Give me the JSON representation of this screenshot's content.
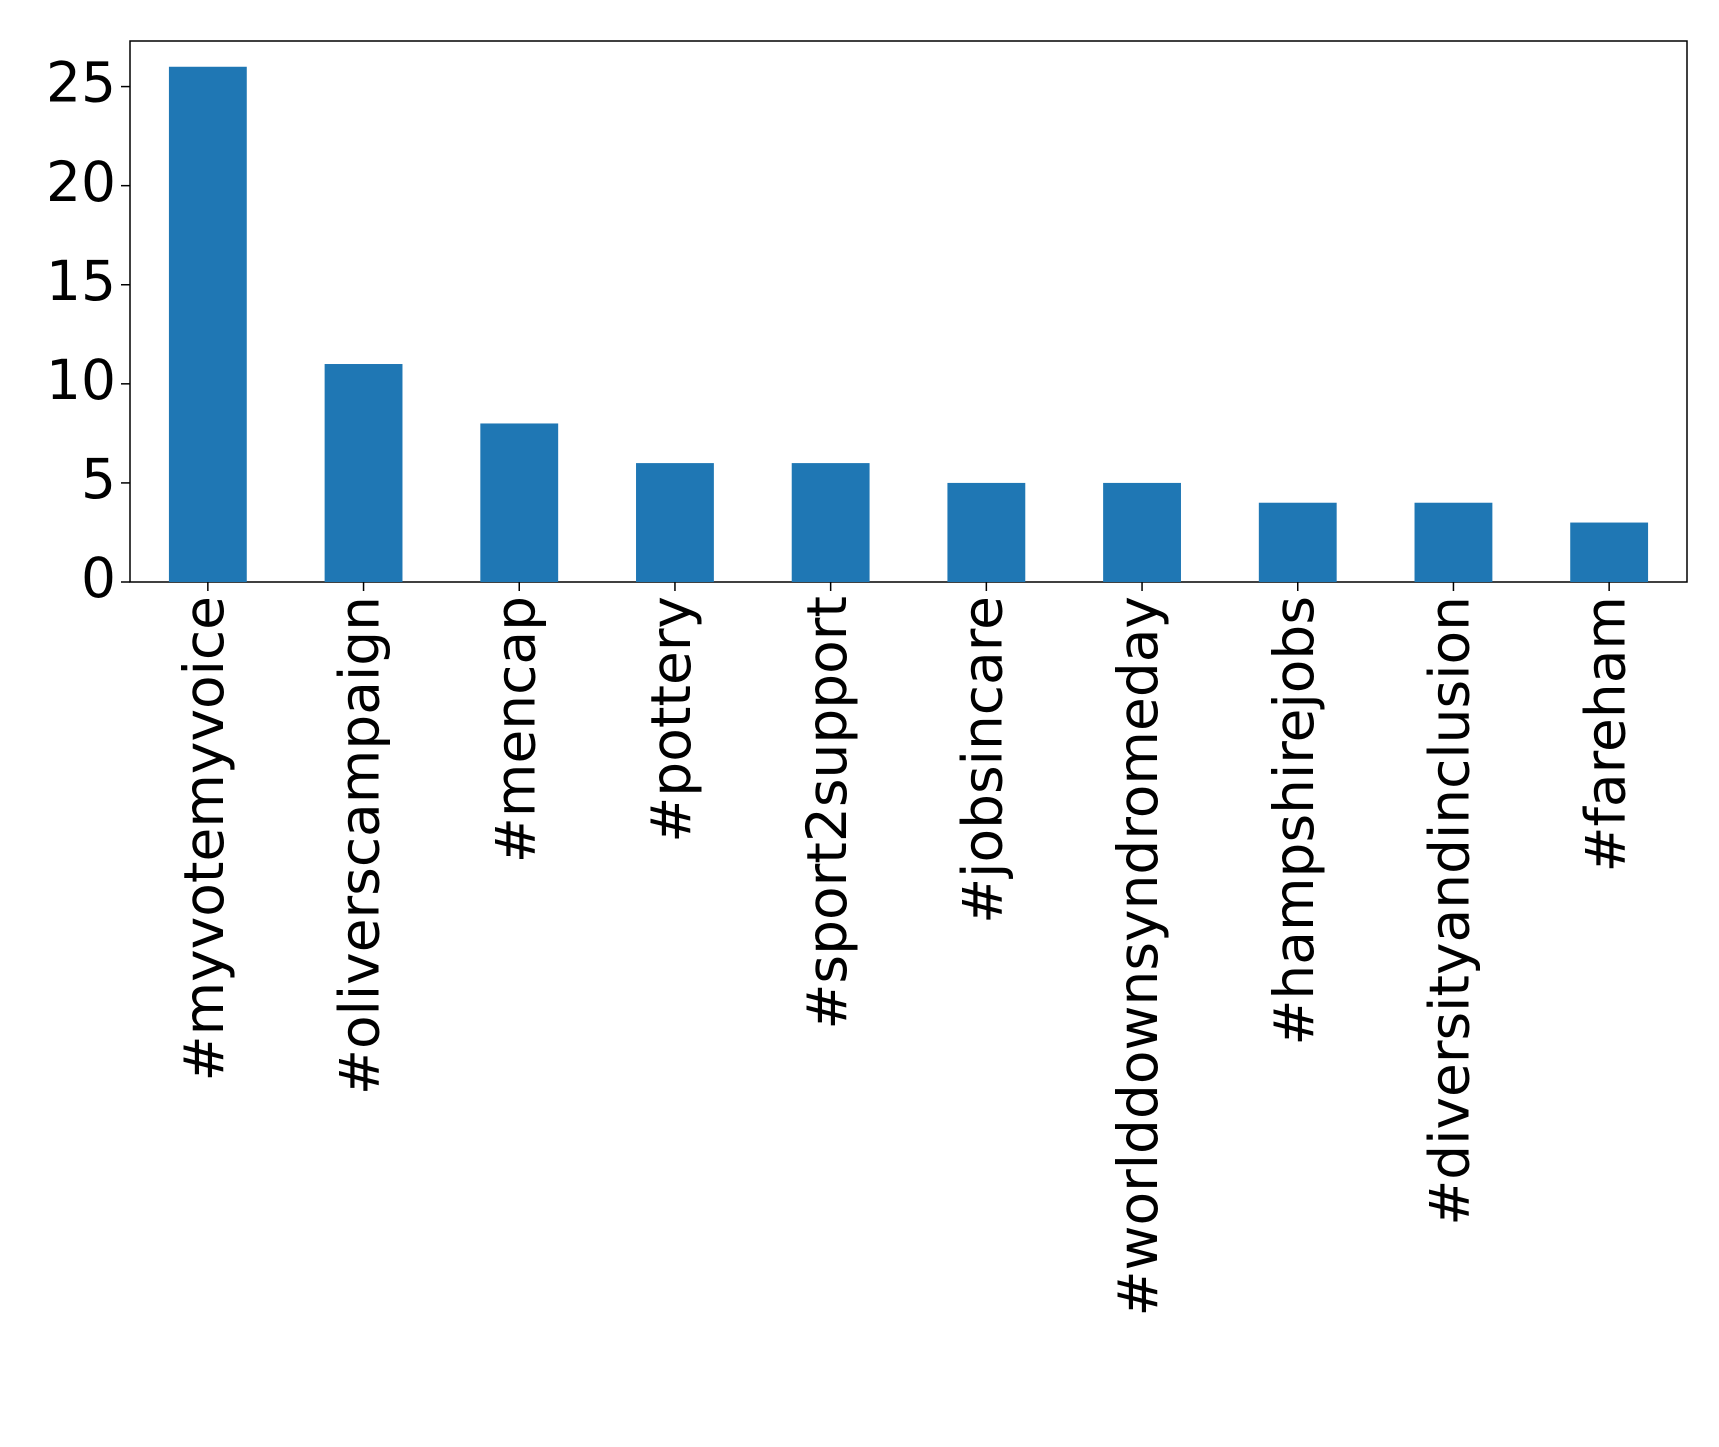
{
  "chart_data": {
    "type": "bar",
    "categories": [
      "#myvotemyvoice",
      "#oliverscampaign",
      "#mencap",
      "#pottery",
      "#sport2support",
      "#jobsincare",
      "#worlddownsyndromeday",
      "#hampshirejobs",
      "#diversityandinclusion",
      "#fareham"
    ],
    "values": [
      26,
      11,
      8,
      6,
      6,
      5,
      5,
      4,
      4,
      3
    ],
    "color": "#1f77b4",
    "ylim": [
      0,
      27.3
    ],
    "yticks": [
      0,
      5,
      10,
      15,
      20,
      25
    ],
    "grid": false
  }
}
